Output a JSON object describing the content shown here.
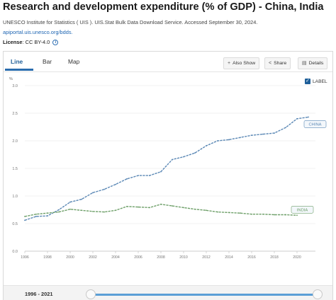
{
  "header": {
    "title": "Research and development expenditure (% of GDP) - China, India",
    "source": "UNESCO Institute for Statistics ( UIS ). UIS.Stat Bulk Data Download Service. Accessed September 30, 2024.",
    "source_link": "apiportal.uis.unesco.org/bdds.",
    "license_label": "License",
    "license_value": ": CC BY-4.0",
    "info_glyph": "i"
  },
  "tabs": [
    {
      "label": "Line",
      "active": true
    },
    {
      "label": "Bar",
      "active": false
    },
    {
      "label": "Map",
      "active": false
    }
  ],
  "toolbar": {
    "also_show": "Also Show",
    "share": "Share",
    "details": "Details",
    "icons": {
      "also_show": "plus-icon",
      "share": "share-icon",
      "details": "document-icon"
    }
  },
  "label_toggle": {
    "label": "LABEL",
    "checked": true,
    "check_glyph": "✓"
  },
  "slider": {
    "range_label": "1996 - 2021",
    "start_year": 1996,
    "end_year": 2021
  },
  "colors": {
    "china": "#5b88b5",
    "india": "#6fa06a",
    "accent": "#1f5f99"
  },
  "chart_data": {
    "type": "line",
    "ylabel": "%",
    "ylim": [
      0,
      3.0
    ],
    "yticks": [
      "0.0",
      "0.5",
      "1.0",
      "1.5",
      "2.0",
      "2.5",
      "3.0"
    ],
    "xlim": [
      1996,
      2021
    ],
    "xticks": [
      "1996",
      "1998",
      "2000",
      "2002",
      "2004",
      "2006",
      "2008",
      "2010",
      "2012",
      "2014",
      "2016",
      "2018",
      "2020"
    ],
    "grid": true,
    "series": [
      {
        "name": "CHINA",
        "x": [
          1996,
          1997,
          1998,
          1999,
          2000,
          2001,
          2002,
          2003,
          2004,
          2005,
          2006,
          2007,
          2008,
          2009,
          2010,
          2011,
          2012,
          2013,
          2014,
          2015,
          2016,
          2017,
          2018,
          2019,
          2020,
          2021
        ],
        "values": [
          0.56,
          0.63,
          0.64,
          0.75,
          0.89,
          0.94,
          1.06,
          1.12,
          1.21,
          1.31,
          1.37,
          1.37,
          1.44,
          1.66,
          1.71,
          1.78,
          1.91,
          2.0,
          2.02,
          2.06,
          2.1,
          2.12,
          2.14,
          2.24,
          2.4,
          2.43
        ]
      },
      {
        "name": "INDIA",
        "x": [
          1996,
          1997,
          1998,
          1999,
          2000,
          2001,
          2002,
          2003,
          2004,
          2005,
          2006,
          2007,
          2008,
          2009,
          2010,
          2011,
          2012,
          2013,
          2014,
          2015,
          2016,
          2017,
          2018,
          2019,
          2020
        ],
        "values": [
          0.63,
          0.67,
          0.69,
          0.71,
          0.76,
          0.74,
          0.72,
          0.71,
          0.74,
          0.81,
          0.8,
          0.79,
          0.85,
          0.82,
          0.79,
          0.76,
          0.74,
          0.71,
          0.7,
          0.69,
          0.67,
          0.67,
          0.66,
          0.66,
          0.65
        ]
      }
    ]
  }
}
